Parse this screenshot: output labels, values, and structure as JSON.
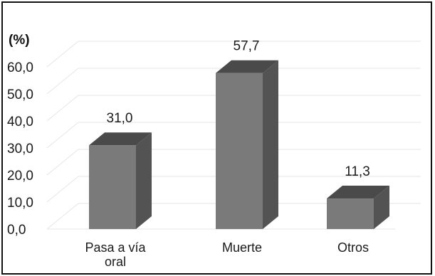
{
  "chart_data": {
    "type": "bar",
    "style": "3d-column",
    "ylabel": "(%)",
    "categories": [
      [
        "Pasa a vía",
        "oral"
      ],
      [
        "Muerte"
      ],
      [
        "Otros"
      ]
    ],
    "values": [
      31.0,
      57.7,
      11.3
    ],
    "data_labels": [
      "31,0",
      "57,7",
      "11,3"
    ],
    "yticks": [
      0,
      10,
      20,
      30,
      40,
      50,
      60
    ],
    "ytick_labels": [
      "0,0",
      "10,0",
      "20,0",
      "30,0",
      "40,0",
      "50,0",
      "60,0"
    ],
    "ylim": [
      0,
      60
    ],
    "grid": true,
    "legend": "none",
    "colors": {
      "front": "#7a7a7a",
      "top": "#4a4a4a",
      "side": "#535353",
      "grid": "#e6e6e6",
      "frame": "#111111"
    }
  }
}
